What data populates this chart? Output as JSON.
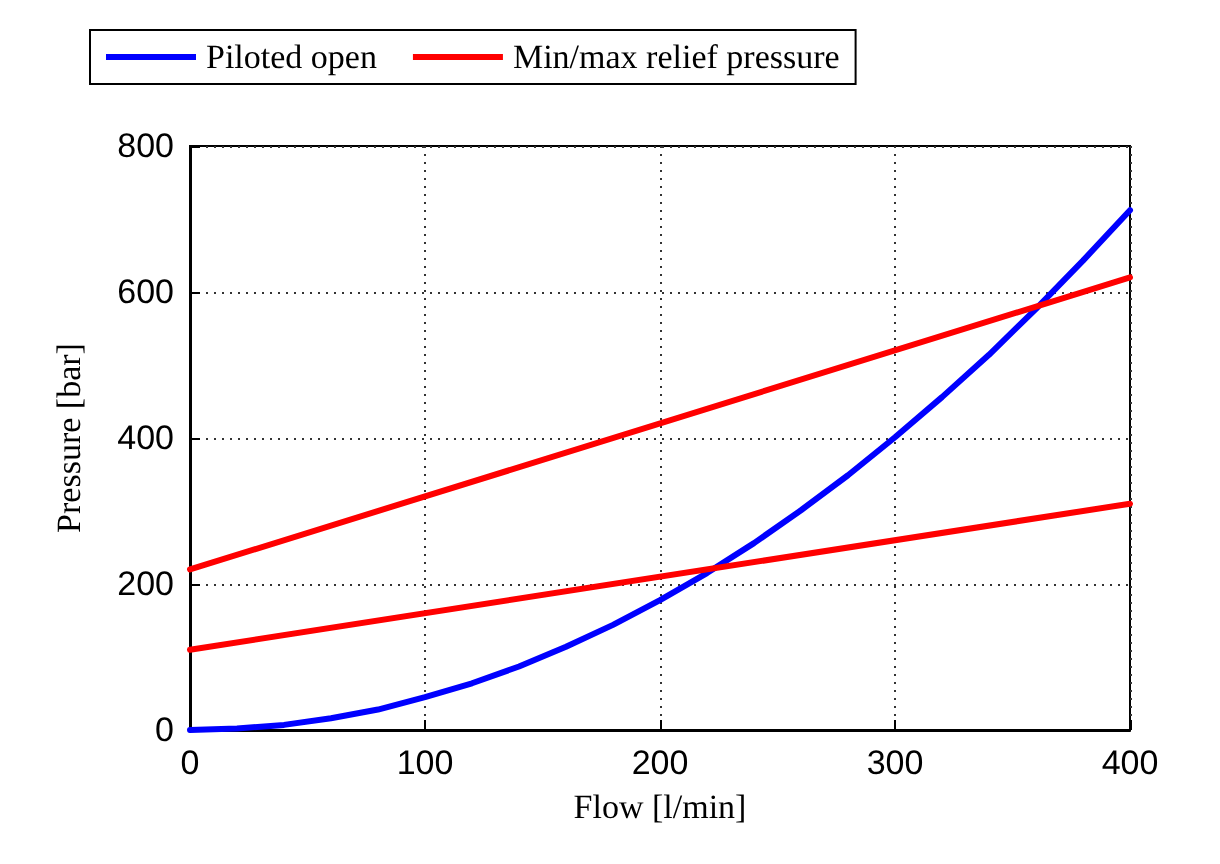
{
  "chart_data": {
    "type": "line",
    "xlabel": "Flow [l/min]",
    "ylabel": "Pressure [bar]",
    "xlim": [
      0,
      400
    ],
    "xticks": [
      0,
      100,
      200,
      300,
      400
    ],
    "ylim": [
      0,
      800
    ],
    "yticks": [
      0,
      200,
      400,
      600,
      800
    ],
    "grid": true,
    "legend": "top",
    "marker": "none",
    "line_style": "solid",
    "series": [
      {
        "name": "Piloted open",
        "color": "#0000ff",
        "x": [
          0,
          20,
          40,
          60,
          80,
          100,
          120,
          140,
          160,
          180,
          200,
          220,
          240,
          260,
          280,
          300,
          320,
          340,
          360,
          380,
          400
        ],
        "values": [
          0,
          2,
          7,
          16,
          28,
          45,
          64,
          87,
          114,
          144,
          178,
          215,
          256,
          301,
          349,
          401,
          456,
          514,
          577,
          643,
          712
        ]
      },
      {
        "name": "Min/max relief pressure",
        "color": "#ff0000",
        "x": [
          0,
          400
        ],
        "values": [
          220,
          620
        ]
      },
      {
        "color": "#ff0000",
        "x": [
          0,
          400
        ],
        "values": [
          110,
          310
        ]
      }
    ]
  }
}
